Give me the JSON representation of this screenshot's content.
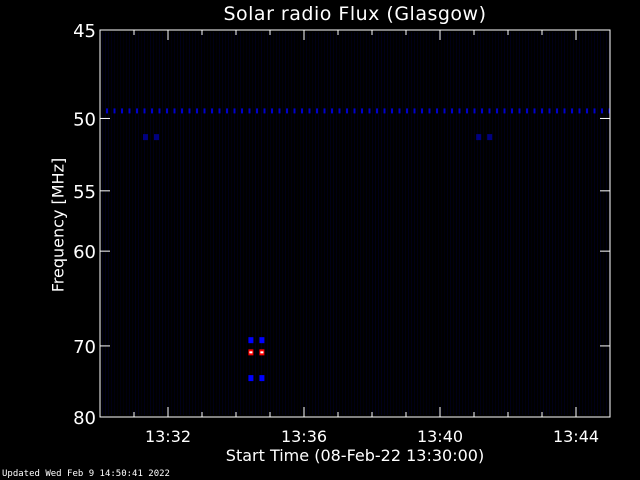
{
  "chart_data": {
    "type": "heatmap",
    "title": "Solar radio Flux (Glasgow)",
    "xlabel": "Start Time (08-Feb-22 13:30:00)",
    "ylabel": "Frequency [MHz]",
    "x_ticks": [
      "13:32",
      "13:36",
      "13:40",
      "13:44"
    ],
    "x_tick_minutes": [
      2,
      6,
      10,
      14
    ],
    "xlim_minutes": [
      0,
      15
    ],
    "y_ticks": [
      45,
      50,
      55,
      60,
      70,
      80
    ],
    "ylim": [
      45,
      80
    ],
    "y_scale": "reciprocal",
    "colormap": [
      "#000000",
      "#000080",
      "#0000ff",
      "#ff0000",
      "#ffffff"
    ],
    "background_color": "#000000",
    "interference_band_mhz": 49.5,
    "burst_events": [
      {
        "time_minutes": 4.6,
        "freq_mhz": 69.3,
        "intensity": "medium"
      },
      {
        "time_minutes": 4.6,
        "freq_mhz": 70.8,
        "intensity": "high"
      },
      {
        "time_minutes": 4.6,
        "freq_mhz": 74.2,
        "intensity": "medium"
      },
      {
        "time_minutes": 1.5,
        "freq_mhz": 51.2,
        "intensity": "low"
      },
      {
        "time_minutes": 11.3,
        "freq_mhz": 51.2,
        "intensity": "low"
      }
    ]
  },
  "footer": {
    "updated_text": "Updated Wed Feb  9 14:50:41 2022"
  }
}
